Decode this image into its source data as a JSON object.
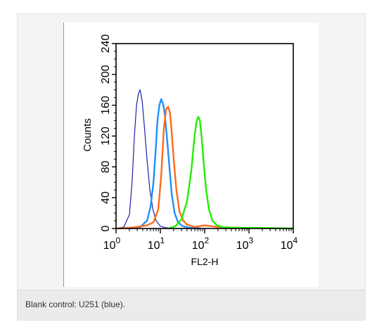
{
  "caption": "Blank control: U251 (blue).",
  "chart_data": {
    "type": "line",
    "xlabel": "FL2-H",
    "ylabel": "Counts",
    "x_scale": "log",
    "xlim": [
      1,
      10000
    ],
    "ylim": [
      0,
      240
    ],
    "x_ticks": [
      {
        "value": 1,
        "base": "10",
        "exp": "0"
      },
      {
        "value": 10,
        "base": "10",
        "exp": "1"
      },
      {
        "value": 100,
        "base": "10",
        "exp": "2"
      },
      {
        "value": 1000,
        "base": "10",
        "exp": "3"
      },
      {
        "value": 10000,
        "base": "10",
        "exp": "4"
      }
    ],
    "y_ticks": [
      0,
      40,
      80,
      120,
      160,
      200,
      240
    ],
    "grid": false,
    "legend": "none",
    "series": [
      {
        "color": "#1f1fa8",
        "stroke": 1.2,
        "x": [
          1,
          1.5,
          2,
          2.3,
          2.6,
          2.9,
          3.2,
          3.5,
          3.9,
          4.4,
          5,
          5.8,
          6.8,
          8,
          10,
          13,
          18,
          30
        ],
        "y": [
          0,
          2,
          18,
          60,
          120,
          160,
          175,
          180,
          165,
          130,
          90,
          50,
          25,
          10,
          3,
          1,
          0,
          0
        ]
      },
      {
        "color": "#1e90ff",
        "stroke": 2.4,
        "x": [
          2,
          3.5,
          5,
          6,
          7,
          7.8,
          8.6,
          9.5,
          10.5,
          11.5,
          12.5,
          14,
          16,
          18,
          21,
          25,
          32,
          45,
          80
        ],
        "y": [
          0,
          2,
          10,
          28,
          60,
          100,
          140,
          160,
          168,
          162,
          150,
          120,
          80,
          45,
          20,
          8,
          3,
          1,
          0
        ]
      },
      {
        "color": "#ff6a1a",
        "stroke": 2.4,
        "x": [
          1,
          2,
          3,
          5,
          7,
          9,
          10.5,
          12,
          13.5,
          15,
          16.5,
          18,
          20,
          23,
          27,
          33,
          40,
          60,
          100,
          200,
          500,
          1000
        ],
        "y": [
          0,
          1,
          2,
          4,
          8,
          25,
          70,
          130,
          155,
          158,
          150,
          125,
          90,
          50,
          22,
          10,
          5,
          2,
          4,
          2,
          1,
          0
        ]
      },
      {
        "color": "#22ee00",
        "stroke": 2.4,
        "x": [
          15,
          22,
          30,
          40,
          50,
          58,
          65,
          72,
          78,
          85,
          95,
          108,
          125,
          150,
          190,
          250,
          400,
          1000,
          10000
        ],
        "y": [
          0,
          3,
          12,
          35,
          75,
          115,
          138,
          145,
          140,
          120,
          85,
          50,
          25,
          10,
          4,
          2,
          1,
          1,
          0
        ]
      }
    ]
  }
}
